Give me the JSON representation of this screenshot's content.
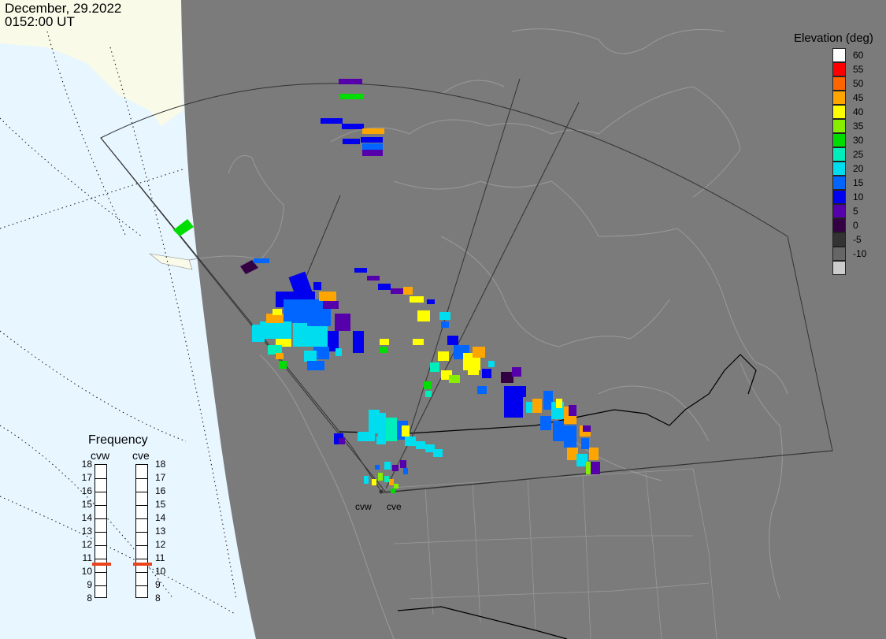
{
  "header": {
    "date": "December, 29.2022",
    "time": "0152:00 UT"
  },
  "elevation_scale": {
    "title": "Elevation (deg)",
    "levels": [
      {
        "label": "60",
        "color": "#ffffff"
      },
      {
        "label": "55",
        "color": "#ff0000"
      },
      {
        "label": "50",
        "color": "#ff6600"
      },
      {
        "label": "45",
        "color": "#ffa500"
      },
      {
        "label": "40",
        "color": "#ffff00"
      },
      {
        "label": "35",
        "color": "#88ee00"
      },
      {
        "label": "30",
        "color": "#00dd00"
      },
      {
        "label": "25",
        "color": "#00eebb"
      },
      {
        "label": "20",
        "color": "#00ddee"
      },
      {
        "label": "15",
        "color": "#0066ff"
      },
      {
        "label": "10",
        "color": "#0000ee"
      },
      {
        "label": "5",
        "color": "#5500aa"
      },
      {
        "label": "0",
        "color": "#330044"
      },
      {
        "label": "-5",
        "color": "#333333"
      },
      {
        "label": "-10",
        "color": "#666666"
      },
      {
        "label": "",
        "color": "#cccccc"
      }
    ]
  },
  "frequency_panel": {
    "title": "Frequency",
    "columns": [
      {
        "name": "cvw",
        "value_mhz": 10.6
      },
      {
        "name": "cve",
        "value_mhz": 10.6
      }
    ],
    "ticks": [
      "18",
      "17",
      "16",
      "15",
      "14",
      "13",
      "12",
      "11",
      "10",
      "9",
      "8"
    ],
    "marker_color": "#e8451c"
  },
  "radars": [
    {
      "name": "cvw"
    },
    {
      "name": "cve"
    }
  ],
  "colors": {
    "ocean": "#e8f6ff",
    "land_day": "#fafae8",
    "night": "#7b7b7b",
    "border": "#000000"
  }
}
